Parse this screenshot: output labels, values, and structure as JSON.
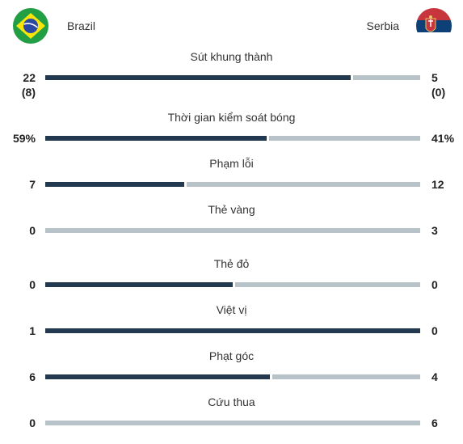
{
  "match": {
    "home": {
      "name": "Brazil",
      "flag": "brazil-flag-icon"
    },
    "away": {
      "name": "Serbia",
      "flag": "serbia-flag-icon"
    }
  },
  "colors": {
    "home_bar": "#22394f",
    "away_bar": "#b7c2c9"
  },
  "stats": [
    {
      "label": "Sút khung thành",
      "home": "22",
      "away": "5",
      "home_sub": "(8)",
      "away_sub": "(0)",
      "home_share": 0.815
    },
    {
      "label": "Thời gian kiểm soát bóng",
      "home": "59%",
      "away": "41%",
      "home_sub": "",
      "away_sub": "",
      "home_share": 0.59
    },
    {
      "label": "Phạm lỗi",
      "home": "7",
      "away": "12",
      "home_sub": "",
      "away_sub": "",
      "home_share": 0.37
    },
    {
      "label": "Thẻ vàng",
      "home": "0",
      "away": "3",
      "home_sub": "",
      "away_sub": "",
      "home_share": 0.0
    },
    {
      "label": "Thẻ đỏ",
      "home": "0",
      "away": "0",
      "home_sub": "",
      "away_sub": "",
      "home_share": 0.5
    },
    {
      "label": "Việt vị",
      "home": "1",
      "away": "0",
      "home_sub": "",
      "away_sub": "",
      "home_share": 1.0
    },
    {
      "label": "Phạt góc",
      "home": "6",
      "away": "4",
      "home_sub": "",
      "away_sub": "",
      "home_share": 0.6
    },
    {
      "label": "Cứu thua",
      "home": "0",
      "away": "6",
      "home_sub": "",
      "away_sub": "",
      "home_share": 0.0
    }
  ]
}
